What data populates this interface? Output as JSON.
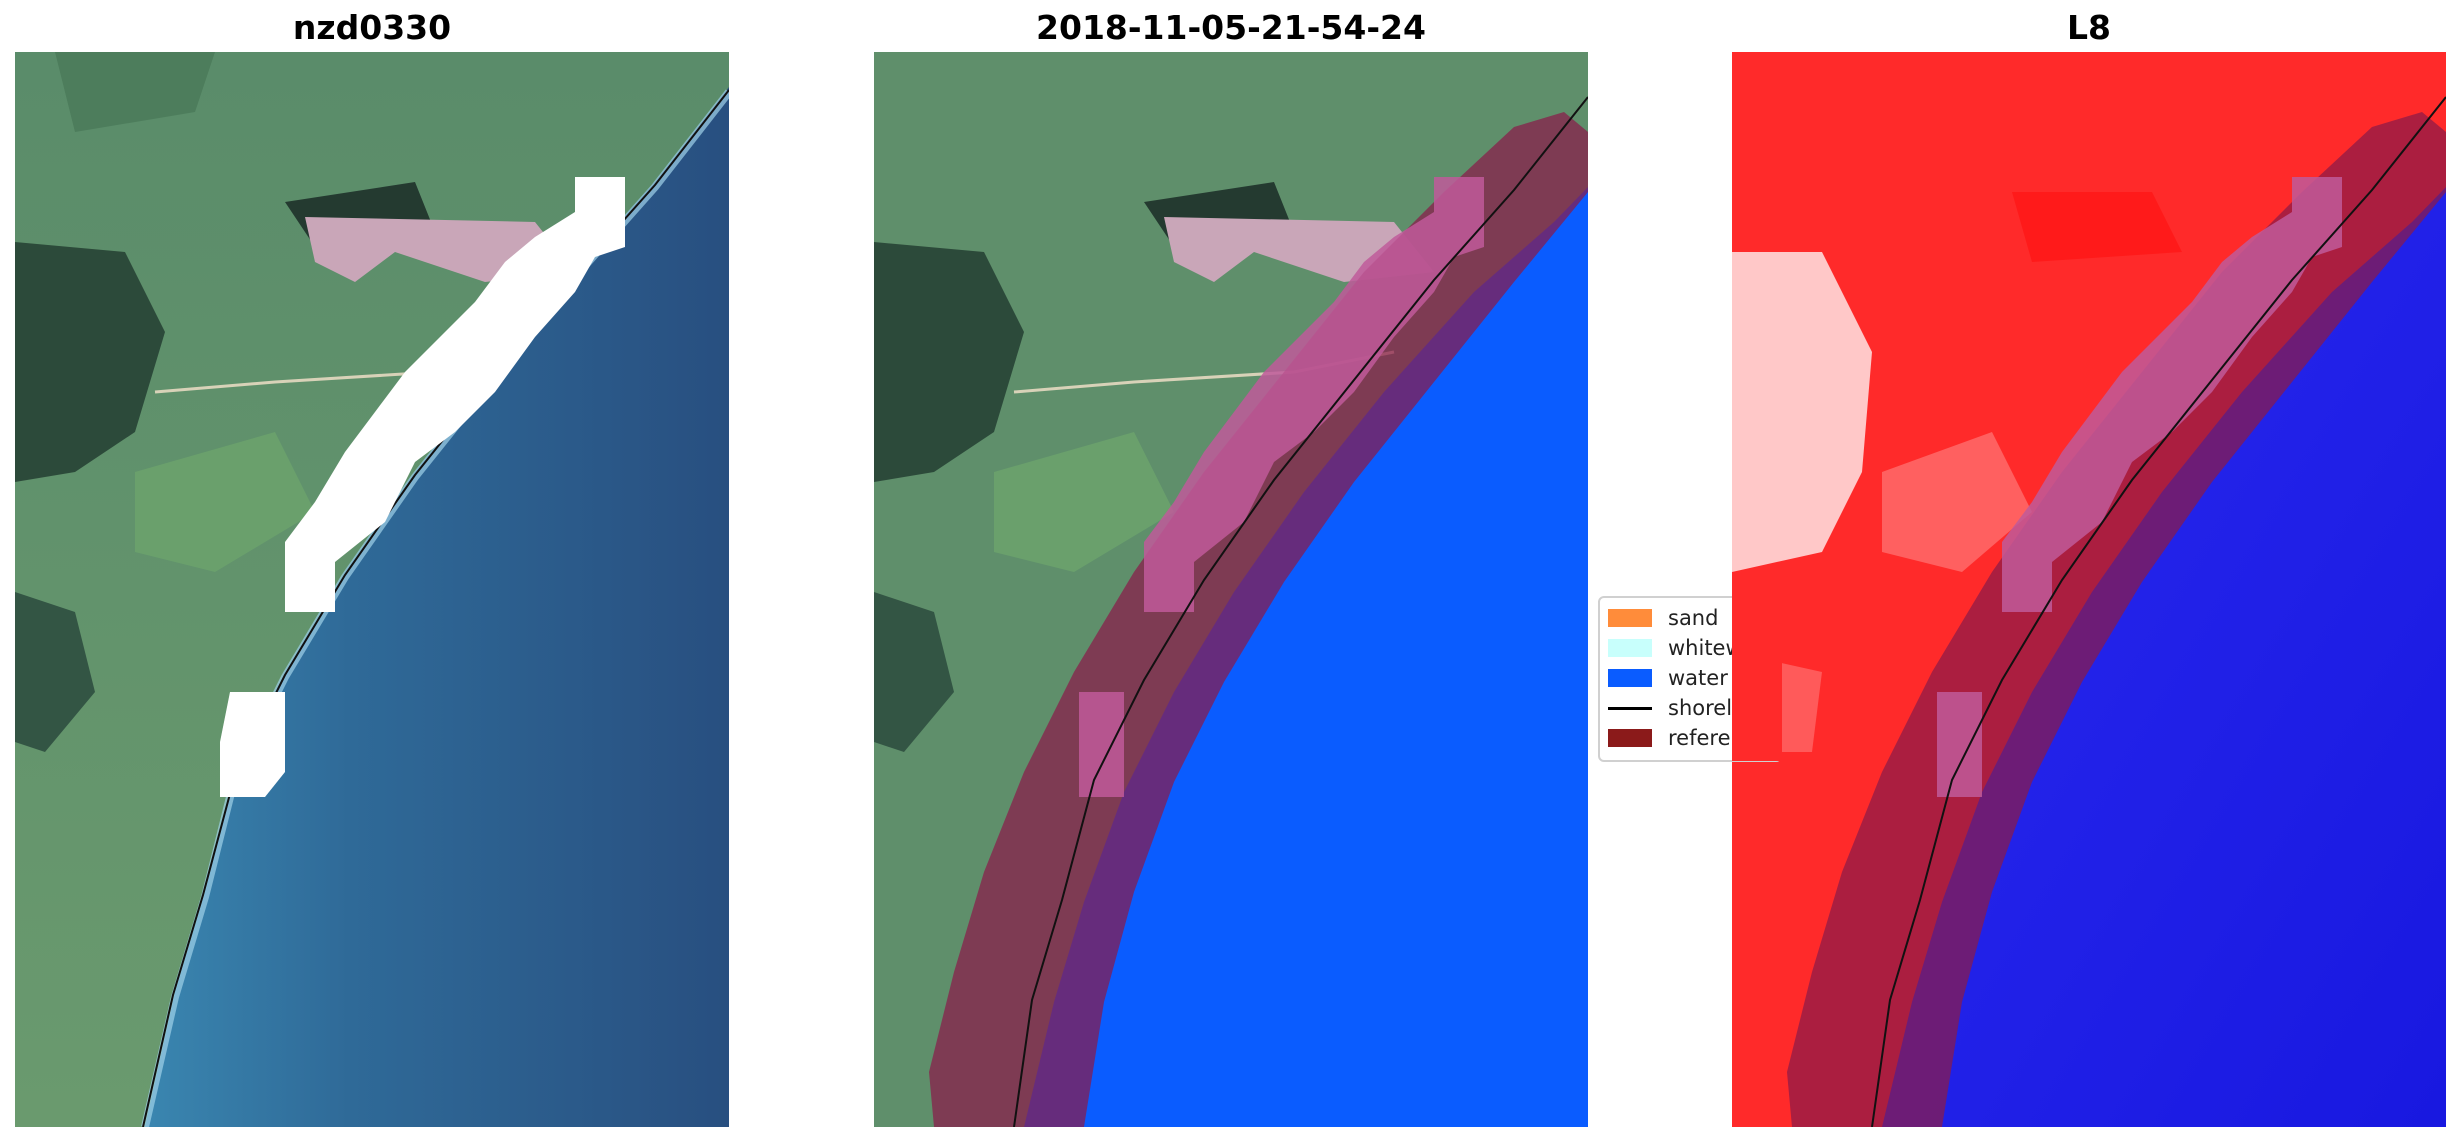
{
  "titles": {
    "left": "nzd0330",
    "middle": "2018-11-05-21-54-24",
    "right": "L8"
  },
  "legend": {
    "items": [
      {
        "label": "sand",
        "color": "#ff8c3a",
        "kind": "patch"
      },
      {
        "label": "whitewater",
        "color": "#c8fffc",
        "kind": "patch"
      },
      {
        "label": "water",
        "color": "#0a5cff",
        "kind": "patch"
      },
      {
        "label": "shoreline",
        "color": "#000000",
        "kind": "line"
      },
      {
        "label": "reference",
        "color": "#8b1a1a",
        "kind": "patch"
      }
    ]
  },
  "colors": {
    "land": "#5f8f6b",
    "ocean": "#2a5685",
    "water_class": "#0a5cff",
    "buffer": "#8b1a4a",
    "cloud": "#ffffff",
    "ndvi_land": "#ff2020",
    "ndvi_water": "#1414e6"
  }
}
